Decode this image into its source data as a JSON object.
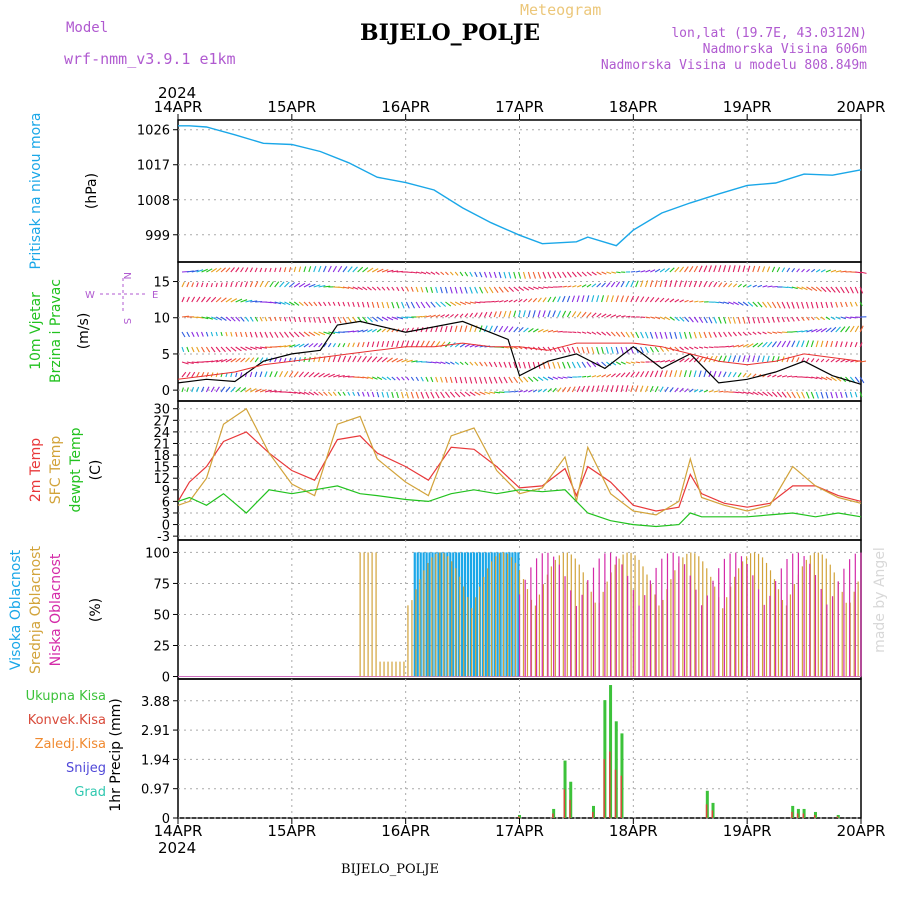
{
  "header": {
    "model_label": "Model",
    "model_name": "wrf-nmm_v3.9.1 e1km",
    "title": "BIJELO_POLJE",
    "subtitle": "Meteogram",
    "lonlat": "lon,lat (19.7E, 43.0312N)",
    "elev": "Nadmorska Visina 606m",
    "elev_model": "Nadmorska Visina u modelu 808.849m",
    "footer_station": "BIJELO_POLJE",
    "watermark": "made by Angel"
  },
  "colors": {
    "pressure": "#1aa7e8",
    "t2m": "#e8383a",
    "tsfc": "#d2a33a",
    "dewpt": "#22c21f",
    "high_cloud": "#1aa7e8",
    "mid_cloud": "#d2a33a",
    "low_cloud": "#d42aa8",
    "total_precip": "#3cc23a",
    "conv_precip": "#d84a3a",
    "frozen": "#f08a30",
    "snow": "#5048d8",
    "graupel": "#30c8b0",
    "label_purple": "#b05ad0"
  },
  "chart_data": [
    {
      "type": "line",
      "panel": "pressure",
      "year": "2024",
      "x_ticks": [
        "14APR",
        "15APR",
        "16APR",
        "17APR",
        "18APR",
        "19APR",
        "20APR"
      ],
      "ylabel": "Pritisak na nivou mora",
      "unit": "(hPa)",
      "yticks": [
        999,
        1008,
        1017,
        1026
      ],
      "ylim": [
        992,
        1028.5
      ],
      "grid": true,
      "series": [
        {
          "values_x": [
            0,
            0.1,
            0.25,
            0.5,
            0.75,
            1.0,
            1.25,
            1.5,
            1.75,
            2.0,
            2.25,
            2.5,
            2.75,
            3.0,
            3.2,
            3.5,
            3.6,
            3.85,
            4.0,
            4.25,
            4.5,
            4.75,
            5.0,
            5.25,
            5.5,
            5.75,
            6.0
          ],
          "values_y": [
            1027,
            1027,
            1026.7,
            1024.7,
            1022.5,
            1022.2,
            1020.4,
            1017.5,
            1013.8,
            1012.4,
            1010.5,
            1005.9,
            1002.1,
            998.9,
            996.7,
            997.2,
            998.4,
            996.2,
            1000.2,
            1004.6,
            1007.2,
            1009.5,
            1011.7,
            1012.3,
            1014.6,
            1014.3,
            1015.7
          ]
        }
      ]
    },
    {
      "type": "line",
      "panel": "wind",
      "ylabel1": "10m Vjetar",
      "ylabel2": "Brzina i Pravac",
      "unit": "(m/s)",
      "compass": [
        "N",
        "S",
        "W",
        "E"
      ],
      "yticks": [
        0,
        5,
        10,
        15
      ],
      "ylim": [
        -1.5,
        17.7
      ],
      "grid": true,
      "series": [
        {
          "values_x": [
            0,
            0.25,
            0.5,
            0.75,
            1.0,
            1.25,
            1.4,
            1.6,
            2.0,
            2.5,
            2.9,
            3.0,
            3.25,
            3.5,
            3.75,
            4.0,
            4.25,
            4.5,
            4.75,
            5.0,
            5.25,
            5.5,
            5.75,
            6.0
          ],
          "values_y": [
            1,
            1.5,
            1.2,
            4,
            5,
            5.5,
            9,
            9.5,
            8,
            9.5,
            7,
            2,
            4,
            5,
            3,
            6,
            3,
            5,
            1,
            1.5,
            2.5,
            4,
            2,
            0.8
          ]
        },
        {
          "values_x": [
            0,
            0.25,
            0.5,
            0.75,
            1.0,
            1.25,
            1.5,
            1.75,
            2.0,
            2.25,
            2.5,
            2.75,
            3.0,
            3.25,
            3.5,
            3.75,
            4.0,
            4.25,
            4.5,
            4.75,
            5.0,
            5.25,
            5.5,
            5.75,
            6.0
          ],
          "values_y": [
            1.5,
            2,
            2.5,
            3.5,
            4,
            4.5,
            5,
            5.5,
            6,
            6,
            6.5,
            6,
            6,
            5.5,
            6.5,
            6.5,
            6.5,
            6,
            5,
            4,
            3.5,
            4,
            5,
            4.5,
            4
          ]
        }
      ]
    },
    {
      "type": "line",
      "panel": "temperature",
      "ylabel1": "2m Temp",
      "ylabel2": "SFC Temp",
      "ylabel3": "dewpt Temp",
      "unit": "(C)",
      "yticks": [
        -3,
        0,
        3,
        6,
        9,
        12,
        15,
        18,
        21,
        24,
        27,
        30
      ],
      "ylim": [
        -4,
        32
      ],
      "grid": true,
      "series": [
        {
          "name": "2m Temp",
          "values_x": [
            0,
            0.1,
            0.25,
            0.4,
            0.6,
            0.8,
            1.0,
            1.2,
            1.4,
            1.6,
            1.75,
            2.0,
            2.2,
            2.4,
            2.6,
            2.8,
            3.0,
            3.2,
            3.4,
            3.5,
            3.6,
            3.8,
            4.0,
            4.2,
            4.4,
            4.5,
            4.6,
            4.8,
            5.0,
            5.2,
            5.4,
            5.6,
            5.8,
            6.0
          ],
          "values_y": [
            6,
            11,
            15,
            21.5,
            24,
            18.5,
            14,
            11.5,
            22,
            23,
            18.5,
            15,
            11.5,
            20,
            19.5,
            15,
            9.5,
            10,
            14.5,
            7.5,
            15,
            11,
            5,
            3.5,
            4.5,
            13,
            8,
            5.5,
            4.5,
            5.5,
            10,
            10,
            7.5,
            6
          ]
        },
        {
          "name": "SFC Temp",
          "values_x": [
            0,
            0.1,
            0.25,
            0.4,
            0.6,
            0.8,
            1.0,
            1.2,
            1.4,
            1.6,
            1.75,
            2.0,
            2.2,
            2.4,
            2.6,
            2.8,
            3.0,
            3.2,
            3.4,
            3.5,
            3.6,
            3.8,
            4.0,
            4.2,
            4.4,
            4.5,
            4.6,
            4.8,
            5.0,
            5.2,
            5.4,
            5.6,
            5.8,
            6.0
          ],
          "values_y": [
            5,
            6,
            12,
            26,
            30,
            18.5,
            10.5,
            7.5,
            26,
            28,
            17,
            11,
            7.5,
            23,
            25,
            14,
            8,
            9.5,
            17.5,
            6,
            20,
            8,
            3.5,
            2.5,
            6,
            17,
            7,
            5,
            3.5,
            5,
            15,
            10,
            7,
            5.5
          ]
        },
        {
          "name": "dewpt Temp",
          "values_x": [
            0,
            0.1,
            0.25,
            0.4,
            0.6,
            0.8,
            1.0,
            1.2,
            1.4,
            1.6,
            1.75,
            2.0,
            2.2,
            2.4,
            2.6,
            2.8,
            3.0,
            3.2,
            3.4,
            3.5,
            3.6,
            3.8,
            4.0,
            4.2,
            4.4,
            4.5,
            4.6,
            4.8,
            5.0,
            5.2,
            5.4,
            5.6,
            5.8,
            6.0
          ],
          "values_y": [
            6,
            7,
            5,
            8,
            3,
            9,
            8,
            9,
            10,
            8,
            7.5,
            6.5,
            6,
            8,
            9,
            8,
            9,
            8.5,
            9,
            6,
            3,
            1,
            0,
            -0.5,
            0,
            3,
            2,
            2,
            2,
            2.5,
            3,
            2,
            3,
            2
          ]
        }
      ]
    },
    {
      "type": "bar",
      "panel": "cloud",
      "ylabel1": "Visoka Oblacnost",
      "ylabel2": "Srednja Oblacnost",
      "ylabel3": "Niska Oblacnost",
      "unit": "(%)",
      "yticks": [
        0,
        25,
        50,
        75,
        100
      ],
      "ylim": [
        -2,
        110
      ],
      "grid": true,
      "series": [
        {
          "name": "Visoka Oblacnost",
          "start": 2.08,
          "end": 3.0,
          "value": 100
        },
        {
          "name": "Srednja Oblacnost",
          "start": 1.6,
          "end": 6.0,
          "value": 100
        },
        {
          "name": "Niska Oblacnost",
          "start": 3.0,
          "end": 6.0,
          "value": 100
        }
      ]
    },
    {
      "type": "bar",
      "panel": "precip",
      "legend": [
        "Ukupna Kisa",
        "Konvek.Kisa",
        "Zaledj.Kisa",
        "Snijeg",
        "Grad"
      ],
      "ylabel": "1hr Precip",
      "unit": "(mm)",
      "yticks": [
        0,
        0.97,
        1.94,
        2.91,
        3.88
      ],
      "ylim": [
        0,
        4.6
      ],
      "grid": true,
      "x_ticks": [
        "14APR",
        "15APR",
        "16APR",
        "17APR",
        "18APR",
        "19APR",
        "20APR"
      ],
      "year": "2024",
      "series": [
        {
          "values_x": [
            3.0,
            3.3,
            3.4,
            3.45,
            3.65,
            3.75,
            3.8,
            3.85,
            3.9,
            4.65,
            4.7,
            5.4,
            5.45,
            5.5,
            5.6,
            5.8
          ],
          "values_y": [
            0.1,
            0.3,
            1.9,
            1.2,
            0.4,
            3.9,
            4.4,
            3.2,
            2.8,
            0.9,
            0.5,
            0.4,
            0.3,
            0.3,
            0.2,
            0.1
          ]
        }
      ]
    }
  ]
}
